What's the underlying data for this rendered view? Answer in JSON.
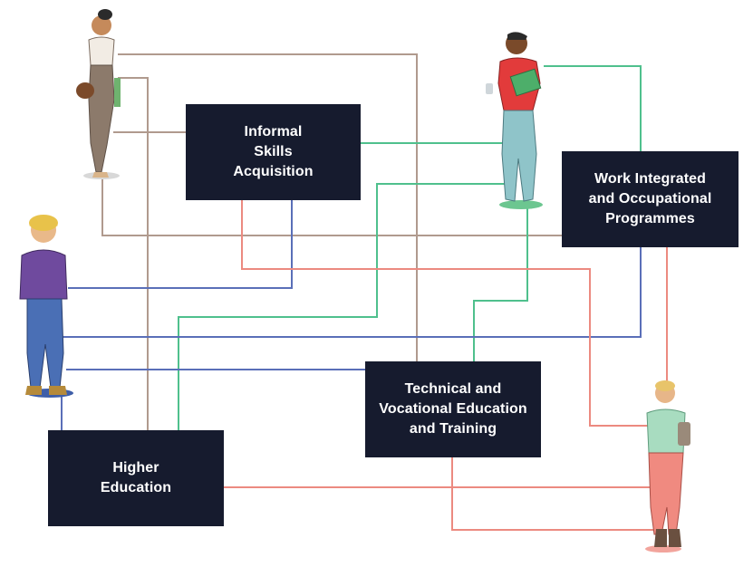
{
  "boxes": {
    "informal": "Informal\nSkills\nAcquisition",
    "work": "Work Integrated\nand Occupational\nProgrammes",
    "tvet": "Technical and\nVocational Education\nand Training",
    "higher": "Higher\nEducation"
  },
  "colors": {
    "box_fill": "#161b2e",
    "box_text": "#ffffff",
    "line_brown": "#b09a8e",
    "line_green": "#4fc08d",
    "line_blue": "#5a6fb8",
    "line_red": "#ec8a80"
  },
  "figures": [
    "student-woman-brown-bag",
    "student-man-red-shirt",
    "student-teen-purple-hoodie",
    "student-woman-green-top"
  ]
}
